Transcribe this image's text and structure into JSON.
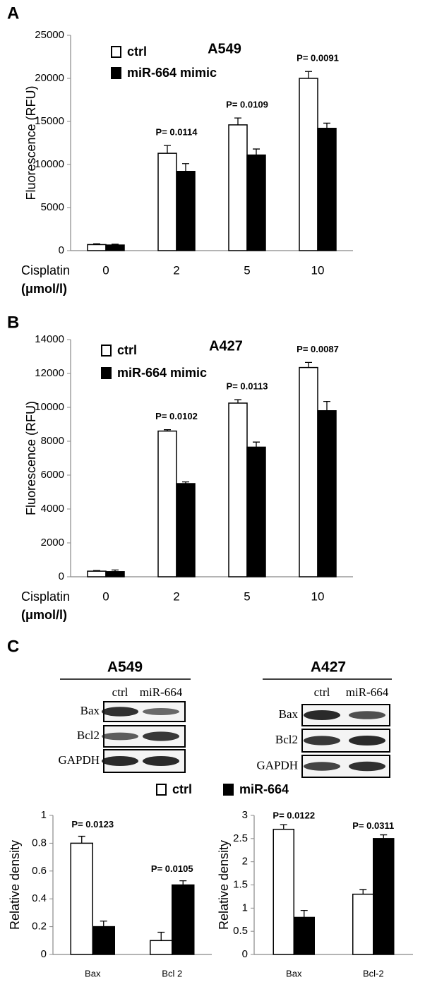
{
  "panels": [
    "A",
    "B",
    "C"
  ],
  "chart_data": [
    {
      "type": "bar",
      "title": "A549",
      "ylabel": "Fluorescence (RFU)",
      "xlabel": "Cisplatin",
      "xunit": "(μmol/l)",
      "categories": [
        "0",
        "2",
        "5",
        "10"
      ],
      "series": [
        {
          "name": "ctrl",
          "color": "#ffffff",
          "values": [
            700,
            11300,
            14600,
            20000
          ],
          "errors": [
            100,
            900,
            800,
            800
          ]
        },
        {
          "name": "miR-664 mimic",
          "color": "#000000",
          "values": [
            650,
            9200,
            11100,
            14200
          ],
          "errors": [
            100,
            900,
            700,
            600
          ]
        }
      ],
      "p_values": [
        null,
        "P= 0.0114",
        "P= 0.0109",
        "P= 0.0091"
      ],
      "ylim": [
        0,
        25000
      ],
      "yticks": [
        0,
        5000,
        10000,
        15000,
        20000,
        25000
      ]
    },
    {
      "type": "bar",
      "title": "A427",
      "ylabel": "Fluorescence (RFU)",
      "xlabel": "Cisplatin",
      "xunit": "(μmol/l)",
      "categories": [
        "0",
        "2",
        "5",
        "10"
      ],
      "series": [
        {
          "name": "ctrl",
          "color": "#ffffff",
          "values": [
            330,
            8600,
            10250,
            12350
          ],
          "errors": [
            40,
            80,
            200,
            300
          ]
        },
        {
          "name": "miR-664 mimic",
          "color": "#000000",
          "values": [
            300,
            5500,
            7650,
            9800
          ],
          "errors": [
            100,
            100,
            300,
            550
          ]
        }
      ],
      "p_values": [
        null,
        "P= 0.0102",
        "P= 0.0113",
        "P= 0.0087"
      ],
      "ylim": [
        0,
        14000
      ],
      "yticks": [
        0,
        2000,
        4000,
        6000,
        8000,
        10000,
        12000,
        14000
      ]
    },
    {
      "type": "bar",
      "ylabel": "Relative density",
      "categories": [
        "Bax",
        "Bcl 2"
      ],
      "series": [
        {
          "name": "ctrl",
          "color": "#ffffff",
          "values": [
            0.8,
            0.1
          ],
          "errors": [
            0.05,
            0.06
          ]
        },
        {
          "name": "miR-664",
          "color": "#000000",
          "values": [
            0.2,
            0.5
          ],
          "errors": [
            0.04,
            0.03
          ]
        }
      ],
      "p_values": [
        "P= 0.0123",
        "P= 0.0105"
      ],
      "ylim": [
        0,
        1
      ],
      "yticks": [
        0,
        0.2,
        0.4,
        0.6,
        0.8,
        1
      ]
    },
    {
      "type": "bar",
      "ylabel": "Relative density",
      "categories": [
        "Bax",
        "Bcl-2"
      ],
      "series": [
        {
          "color": "#ffffff",
          "values": [
            2.7,
            1.3
          ],
          "errors": [
            0.1,
            0.1
          ]
        },
        {
          "color": "#000000",
          "values": [
            0.8,
            2.5
          ],
          "errors": [
            0.15,
            0.08
          ]
        }
      ],
      "p_values": [
        "P= 0.0122",
        "P= 0.0311"
      ],
      "ylim": [
        0,
        3
      ],
      "yticks": [
        0,
        0.5,
        1,
        1.5,
        2,
        2.5,
        3
      ]
    }
  ],
  "blots": [
    {
      "title": "A549",
      "lanes": [
        "ctrl",
        "miR-664"
      ],
      "rows": [
        "Bax",
        "Bcl2",
        "GAPDH"
      ]
    },
    {
      "title": "A427",
      "lanes": [
        "ctrl",
        "miR-664"
      ],
      "rows": [
        "Bax",
        "Bcl2",
        "GAPDH"
      ]
    }
  ]
}
